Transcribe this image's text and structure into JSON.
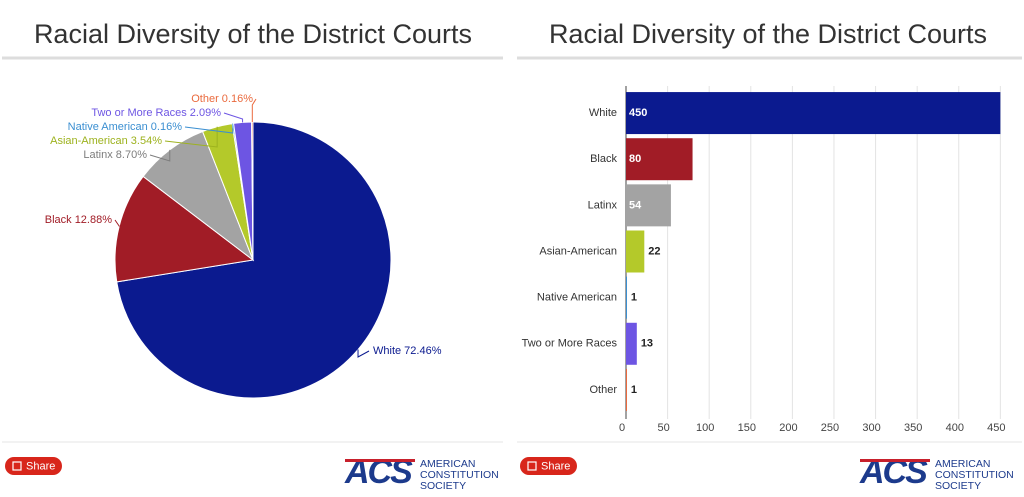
{
  "chart_data": [
    {
      "type": "pie",
      "title": "Racial Diversity of the District Courts",
      "categories": [
        "White",
        "Black",
        "Latinx",
        "Asian-American",
        "Native American",
        "Two or More Races",
        "Other"
      ],
      "values": [
        72.46,
        12.88,
        8.7,
        3.54,
        0.16,
        2.09,
        0.16
      ],
      "value_labels": [
        "White 72.46%",
        "Black 12.88%",
        "Latinx 8.70%",
        "Asian-American 3.54%",
        "Native American 0.16%",
        "Two or More Races 2.09%",
        "Other 0.16%"
      ],
      "colors": [
        "#0b1a8f",
        "#a11c26",
        "#a3a3a3",
        "#b4c92a",
        "#3b8fd1",
        "#6d55e3",
        "#ea6a3e"
      ]
    },
    {
      "type": "bar",
      "orientation": "horizontal",
      "title": "Racial Diversity of the District Courts",
      "categories": [
        "White",
        "Black",
        "Latinx",
        "Asian-American",
        "Native American",
        "Two or More Races",
        "Other"
      ],
      "values": [
        450,
        80,
        54,
        22,
        1,
        13,
        1
      ],
      "colors": [
        "#0b1a8f",
        "#a11c26",
        "#a3a3a3",
        "#b4c92a",
        "#3b8fd1",
        "#6d55e3",
        "#ea6a3e"
      ],
      "xlim": [
        0,
        470
      ],
      "xticks": [
        0,
        50,
        100,
        150,
        200,
        250,
        300,
        350,
        400,
        450
      ],
      "grid": true
    }
  ],
  "footers": [
    {
      "share": "Share",
      "logo_mark": "ACS",
      "logo_text": [
        "AMERICAN",
        "CONSTITUTION",
        "SOCIETY"
      ]
    },
    {
      "share": "Share",
      "logo_mark": "ACS",
      "logo_text": [
        "AMERICAN",
        "CONSTITUTION",
        "SOCIETY"
      ]
    }
  ]
}
